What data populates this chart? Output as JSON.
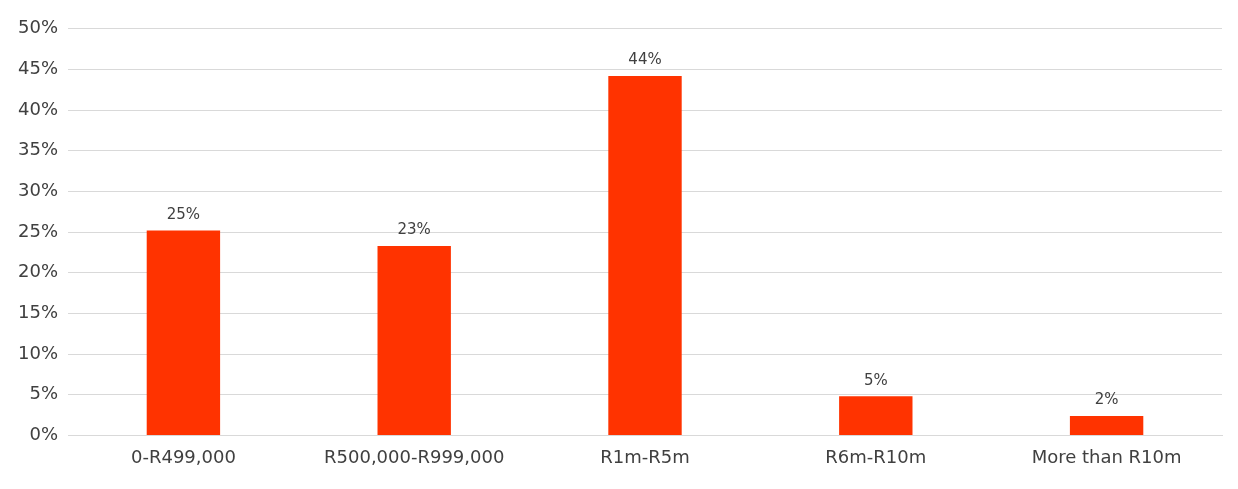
{
  "chart_data": {
    "type": "bar",
    "categories": [
      "0-R499,000",
      "R500,000-R999,000",
      "R1m-R5m",
      "R6m-R10m",
      "More than R10m"
    ],
    "values": [
      25.2,
      23.3,
      44.2,
      4.8,
      2.4
    ],
    "value_labels": [
      "25%",
      "23%",
      "44%",
      "5%",
      "2%"
    ],
    "color": "#ff3300",
    "ylim": [
      0,
      50
    ],
    "yticks": [
      {
        "value": 0,
        "label": "0%"
      },
      {
        "value": 5,
        "label": "5%"
      },
      {
        "value": 10,
        "label": "10%"
      },
      {
        "value": 15,
        "label": "15%"
      },
      {
        "value": 20,
        "label": "20%"
      },
      {
        "value": 25,
        "label": "25%"
      },
      {
        "value": 30,
        "label": "30%"
      },
      {
        "value": 35,
        "label": "35%"
      },
      {
        "value": 40,
        "label": "40%"
      },
      {
        "value": 45,
        "label": "45%"
      },
      {
        "value": 50,
        "label": "50%"
      }
    ],
    "grid": "y",
    "legend": false
  }
}
